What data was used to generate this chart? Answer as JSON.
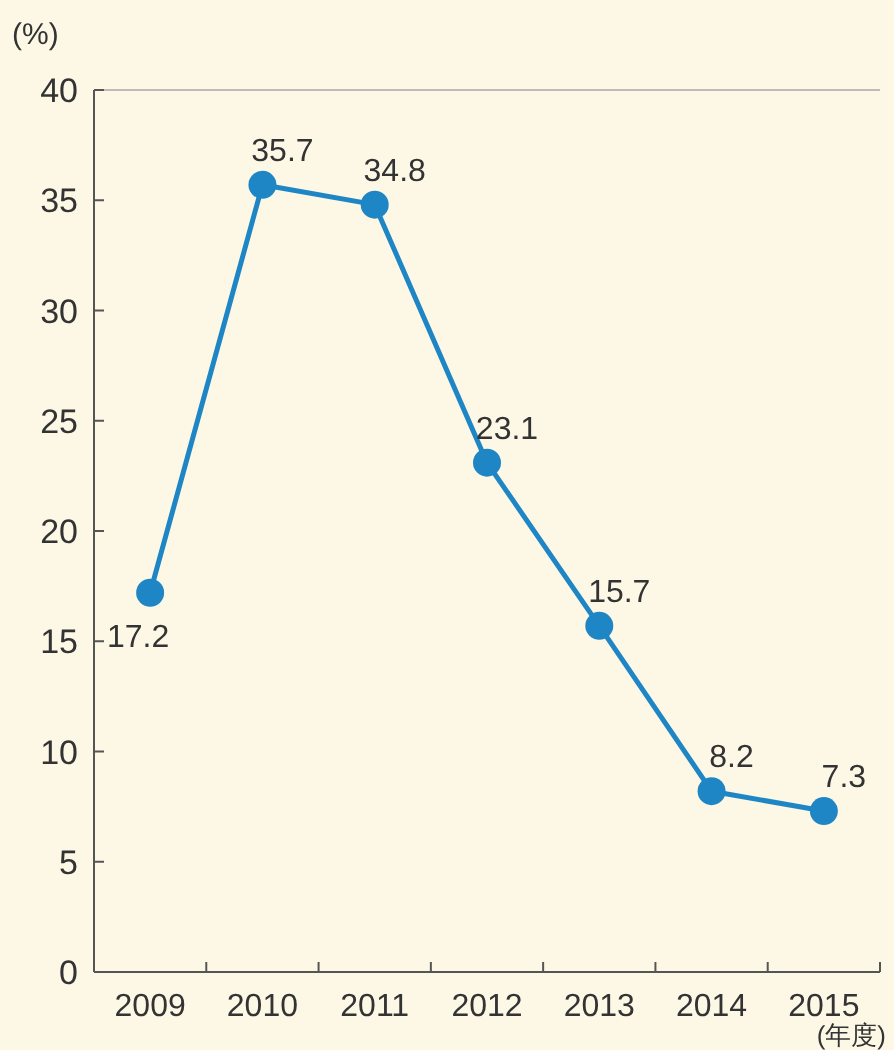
{
  "chart_data": {
    "type": "line",
    "ylabel": "(%)",
    "xlabel": "(年度)",
    "categories": [
      "2009",
      "2010",
      "2011",
      "2012",
      "2013",
      "2014",
      "2015"
    ],
    "series": [
      {
        "color": "#1f86c6",
        "values": [
          17.2,
          35.7,
          34.8,
          23.1,
          15.7,
          8.2,
          7.3
        ]
      }
    ],
    "ylim": [
      0,
      40
    ],
    "yticks": [
      0,
      5,
      10,
      15,
      20,
      25,
      30,
      35,
      40
    ],
    "data_labels": true,
    "marker": "circle",
    "grid": false
  }
}
